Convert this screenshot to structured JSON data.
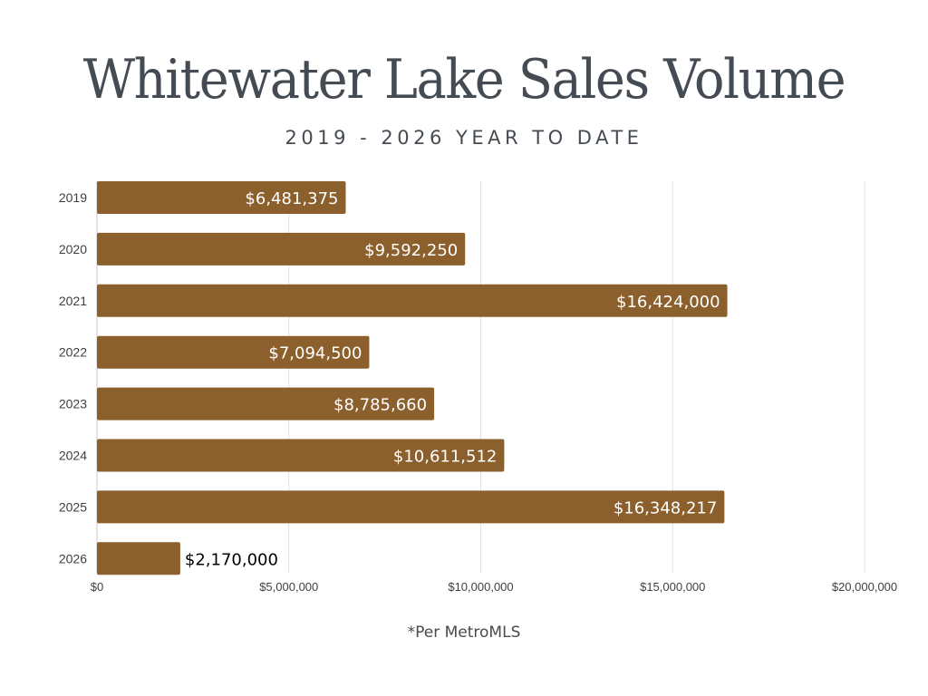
{
  "chart_data": {
    "type": "bar",
    "orientation": "horizontal",
    "title": "Whitewater Lake Sales Volume",
    "subtitle": "2019 - 2026 YEAR TO DATE",
    "categories": [
      "2019",
      "2020",
      "2021",
      "2022",
      "2023",
      "2024",
      "2025",
      "2026"
    ],
    "values": [
      6481375,
      9592250,
      16424000,
      7094500,
      8785660,
      10611512,
      16348217,
      2170000
    ],
    "data_labels": [
      "$6,481,375",
      "$9,592,250",
      "$16,424,000",
      "$7,094,500",
      "$8,785,660",
      "$10,611,512",
      "$16,348,217",
      "$2,170,000"
    ],
    "xlabel": "",
    "ylabel": "",
    "xlim": [
      0,
      20000000
    ],
    "x_ticks": [
      0,
      5000000,
      10000000,
      15000000,
      20000000
    ],
    "x_tick_labels": [
      "$0",
      "$5,000,000",
      "$10,000,000",
      "$15,000,000",
      "$20,000,000"
    ],
    "grid": true,
    "legend": "none",
    "bar_color": "#8b602d",
    "label_color_inside": "#ffffff",
    "label_color_outside": "#000000"
  },
  "footnote": "*Per MetroMLS"
}
